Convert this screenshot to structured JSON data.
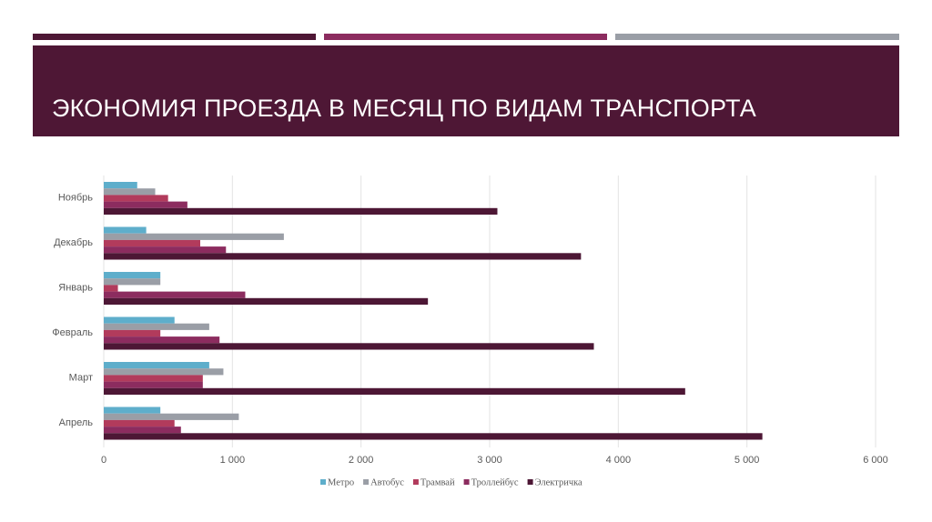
{
  "chart_data": {
    "type": "hbar",
    "title": "ЭКОНОМИЯ ПРОЕЗДА В МЕСЯЦ ПО ВИДАМ ТРАНСПОРТА",
    "categories": [
      "Ноябрь",
      "Декабрь",
      "Январь",
      "Февраль",
      "Март",
      "Апрель"
    ],
    "series": [
      {
        "name": "Метро",
        "color": "#5eaecb",
        "values": [
          260,
          330,
          440,
          550,
          820,
          440
        ]
      },
      {
        "name": "Автобус",
        "color": "#9a9ea6",
        "values": [
          400,
          1400,
          440,
          820,
          930,
          1050
        ]
      },
      {
        "name": "Трамвай",
        "color": "#b23b5c",
        "values": [
          500,
          750,
          110,
          440,
          770,
          550
        ]
      },
      {
        "name": "Троллейбус",
        "color": "#8c2c5f",
        "values": [
          650,
          950,
          1100,
          900,
          770,
          600
        ]
      },
      {
        "name": "Электричка",
        "color": "#4d1735",
        "values": [
          3060,
          3710,
          2520,
          3810,
          4520,
          5120
        ]
      }
    ],
    "xlim": [
      0,
      6000
    ],
    "xticks": [
      0,
      {
        "value": 1000,
        "label": "1 000"
      },
      {
        "value": 2000,
        "label": "2 000"
      },
      {
        "value": 3000,
        "label": "3 000"
      },
      {
        "value": 4000,
        "label": "4 000"
      },
      {
        "value": 5000,
        "label": "5 000"
      },
      {
        "value": 6000,
        "label": "6 000"
      }
    ],
    "grid": true,
    "legend": "bottom"
  }
}
